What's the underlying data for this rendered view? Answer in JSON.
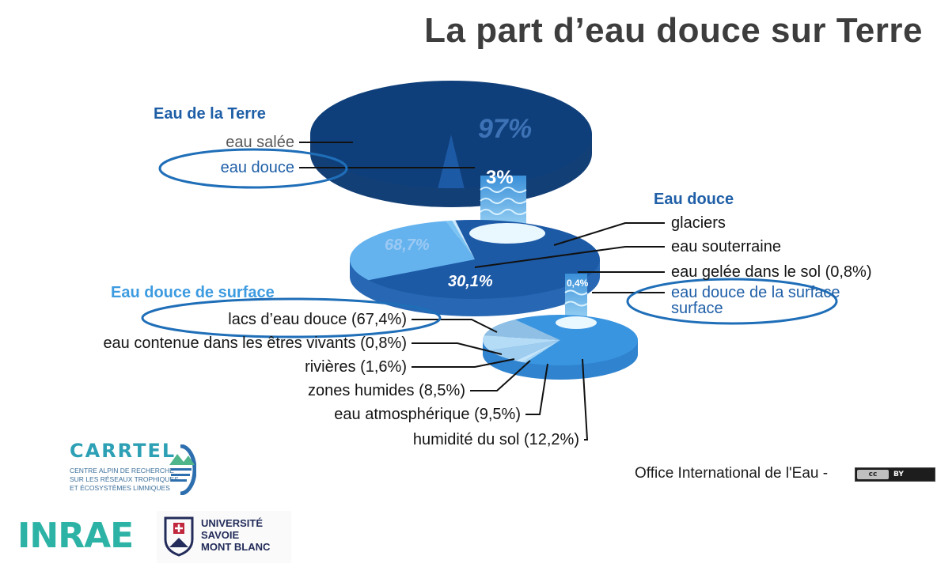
{
  "title": "La part d’eau douce sur Terre",
  "credit": "Office International de l'Eau -",
  "license": {
    "text": "cc",
    "by": "BY"
  },
  "logos": {
    "carrtel": {
      "name": "CARRTEL",
      "subtitle": [
        "CENTRE ALPIN DE RECHERCHE",
        "SUR LES RÉSEAUX TROPHIQUES",
        "ET ÉCOSYSTÈMES LIMNIQUES"
      ]
    },
    "inrae": "INRAE",
    "usmb": [
      "UNIVERSITÉ",
      "SAVOIE",
      "MONT BLANC"
    ]
  },
  "colors": {
    "salt": "#0f3f7a",
    "salt_side": "#133f77",
    "fresh_dark": "#1d5aa6",
    "fresh_side": "#2767b3",
    "groundwater": "#64b3ee",
    "surface_main": "#3a95e0",
    "surface_side": "#2f83cf",
    "label_blue": "#1f5fa7",
    "label_light": "#3d9be0",
    "ellipse": "#1f6eb8",
    "text": "#141414",
    "gray": "#5a5a5a"
  },
  "chart_data": [
    {
      "type": "pie",
      "title": "Eau de la Terre",
      "slices": [
        {
          "label": "eau salée",
          "value": 97,
          "value_label": "97%"
        },
        {
          "label": "eau douce",
          "value": 3,
          "value_label": "3%"
        }
      ]
    },
    {
      "type": "pie",
      "title": "Eau douce",
      "slices": [
        {
          "label": "glaciers",
          "value": 68.7,
          "value_label": "68,7%"
        },
        {
          "label": "eau souterraine",
          "value": 30.1,
          "value_label": "30,1%"
        },
        {
          "label": "eau gelée dans le sol (0,8%)",
          "value": 0.8
        },
        {
          "label": "eau douce de la surface",
          "value": 0.4,
          "value_label": "0,4%"
        }
      ]
    },
    {
      "type": "pie",
      "title": "Eau douce de surface",
      "slices": [
        {
          "label": "lacs d’eau douce (67,4%)",
          "value": 67.4
        },
        {
          "label": "eau contenue dans les êtres vivants (0,8%)",
          "value": 0.8
        },
        {
          "label": "rivières (1,6%)",
          "value": 1.6
        },
        {
          "label": "zones humides (8,5%)",
          "value": 8.5
        },
        {
          "label": "eau atmosphérique (9,5%)",
          "value": 9.5
        },
        {
          "label": "humidité du sol (12,2%)",
          "value": 12.2
        }
      ]
    }
  ]
}
